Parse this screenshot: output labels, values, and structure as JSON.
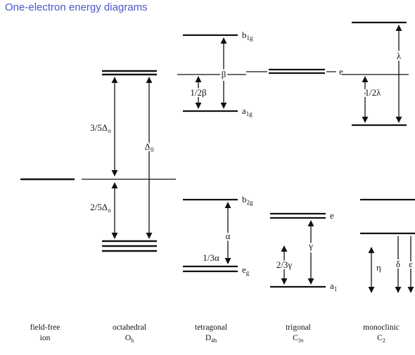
{
  "title": "One-electron energy diagrams",
  "colors": {
    "title": "#4b56c8",
    "lines": "#111111"
  },
  "columns": [
    {
      "label": "field-free",
      "sub": "ion"
    },
    {
      "label": "octahedral",
      "sub": "O",
      "sub_subscript": "h"
    },
    {
      "label": "tetragonal",
      "sub": "D",
      "sub_subscript": "4h"
    },
    {
      "label": "trigonal",
      "sub": "C",
      "sub_subscript": "3v"
    },
    {
      "label": "monoclinic",
      "sub": "C",
      "sub_subscript": "2"
    }
  ],
  "labels": {
    "oct_upper": {
      "base": "3/5Δ",
      "sub": "o"
    },
    "oct_lower": {
      "base": "2/5Δ",
      "sub": "o"
    },
    "oct_total": {
      "base": "Δ",
      "sub": "0"
    },
    "b1g": {
      "base": "b",
      "sub": "1g"
    },
    "a1g": {
      "base": "a",
      "sub": "1g"
    },
    "b2g": {
      "base": "b",
      "sub": "2g"
    },
    "eg": {
      "base": "e",
      "sub": "g"
    },
    "beta": "β",
    "half_beta": "1/2β",
    "alpha": "α",
    "third_alpha": "1/3α",
    "trig_e_upper": "e",
    "trig_e_lower": "e",
    "a1": {
      "base": "a",
      "sub": "1"
    },
    "gamma": "γ",
    "two_thirds_gamma": "2/3γ",
    "lambda": "λ",
    "half_lambda": "1/2λ",
    "eta": "η",
    "delta": "δ",
    "epsilon": "ε"
  }
}
